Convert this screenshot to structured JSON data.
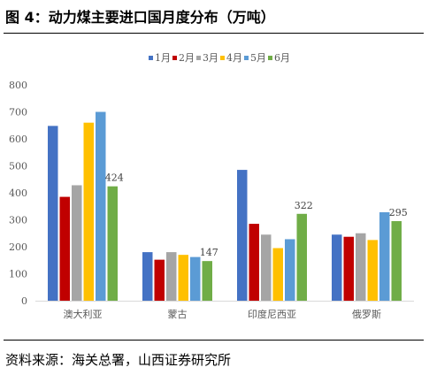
{
  "header": {
    "title": "图 4：动力煤主要进口国月度分布（万吨）"
  },
  "footer": {
    "source": "资料来源：海关总署，山西证券研究所"
  },
  "chart_data": {
    "type": "bar",
    "categories": [
      "澳大利亚",
      "蒙古",
      "印度尼西亚",
      "俄罗斯"
    ],
    "series": [
      {
        "name": "1月",
        "color": "#4472C4",
        "values": [
          648,
          180,
          485,
          245
        ]
      },
      {
        "name": "2月",
        "color": "#C00000",
        "values": [
          385,
          152,
          285,
          237
        ]
      },
      {
        "name": "3月",
        "color": "#A5A5A5",
        "values": [
          428,
          180,
          245,
          250
        ]
      },
      {
        "name": "4月",
        "color": "#FFC000",
        "values": [
          660,
          170,
          195,
          225
        ]
      },
      {
        "name": "5月",
        "color": "#5B9BD5",
        "values": [
          700,
          162,
          228,
          328
        ]
      },
      {
        "name": "6月",
        "color": "#70AD47",
        "values": [
          424,
          147,
          322,
          295
        ]
      }
    ],
    "data_labels": [
      {
        "series": "6月",
        "category": "澳大利亚",
        "text": "424"
      },
      {
        "series": "6月",
        "category": "蒙古",
        "text": "147"
      },
      {
        "series": "6月",
        "category": "印度尼西亚",
        "text": "322"
      },
      {
        "series": "6月",
        "category": "俄罗斯",
        "text": "295"
      }
    ],
    "yticks": [
      "0",
      "100",
      "200",
      "300",
      "400",
      "500",
      "600",
      "700",
      "800"
    ],
    "ylim": [
      0,
      800
    ],
    "legend_position": "top",
    "grid": false
  }
}
